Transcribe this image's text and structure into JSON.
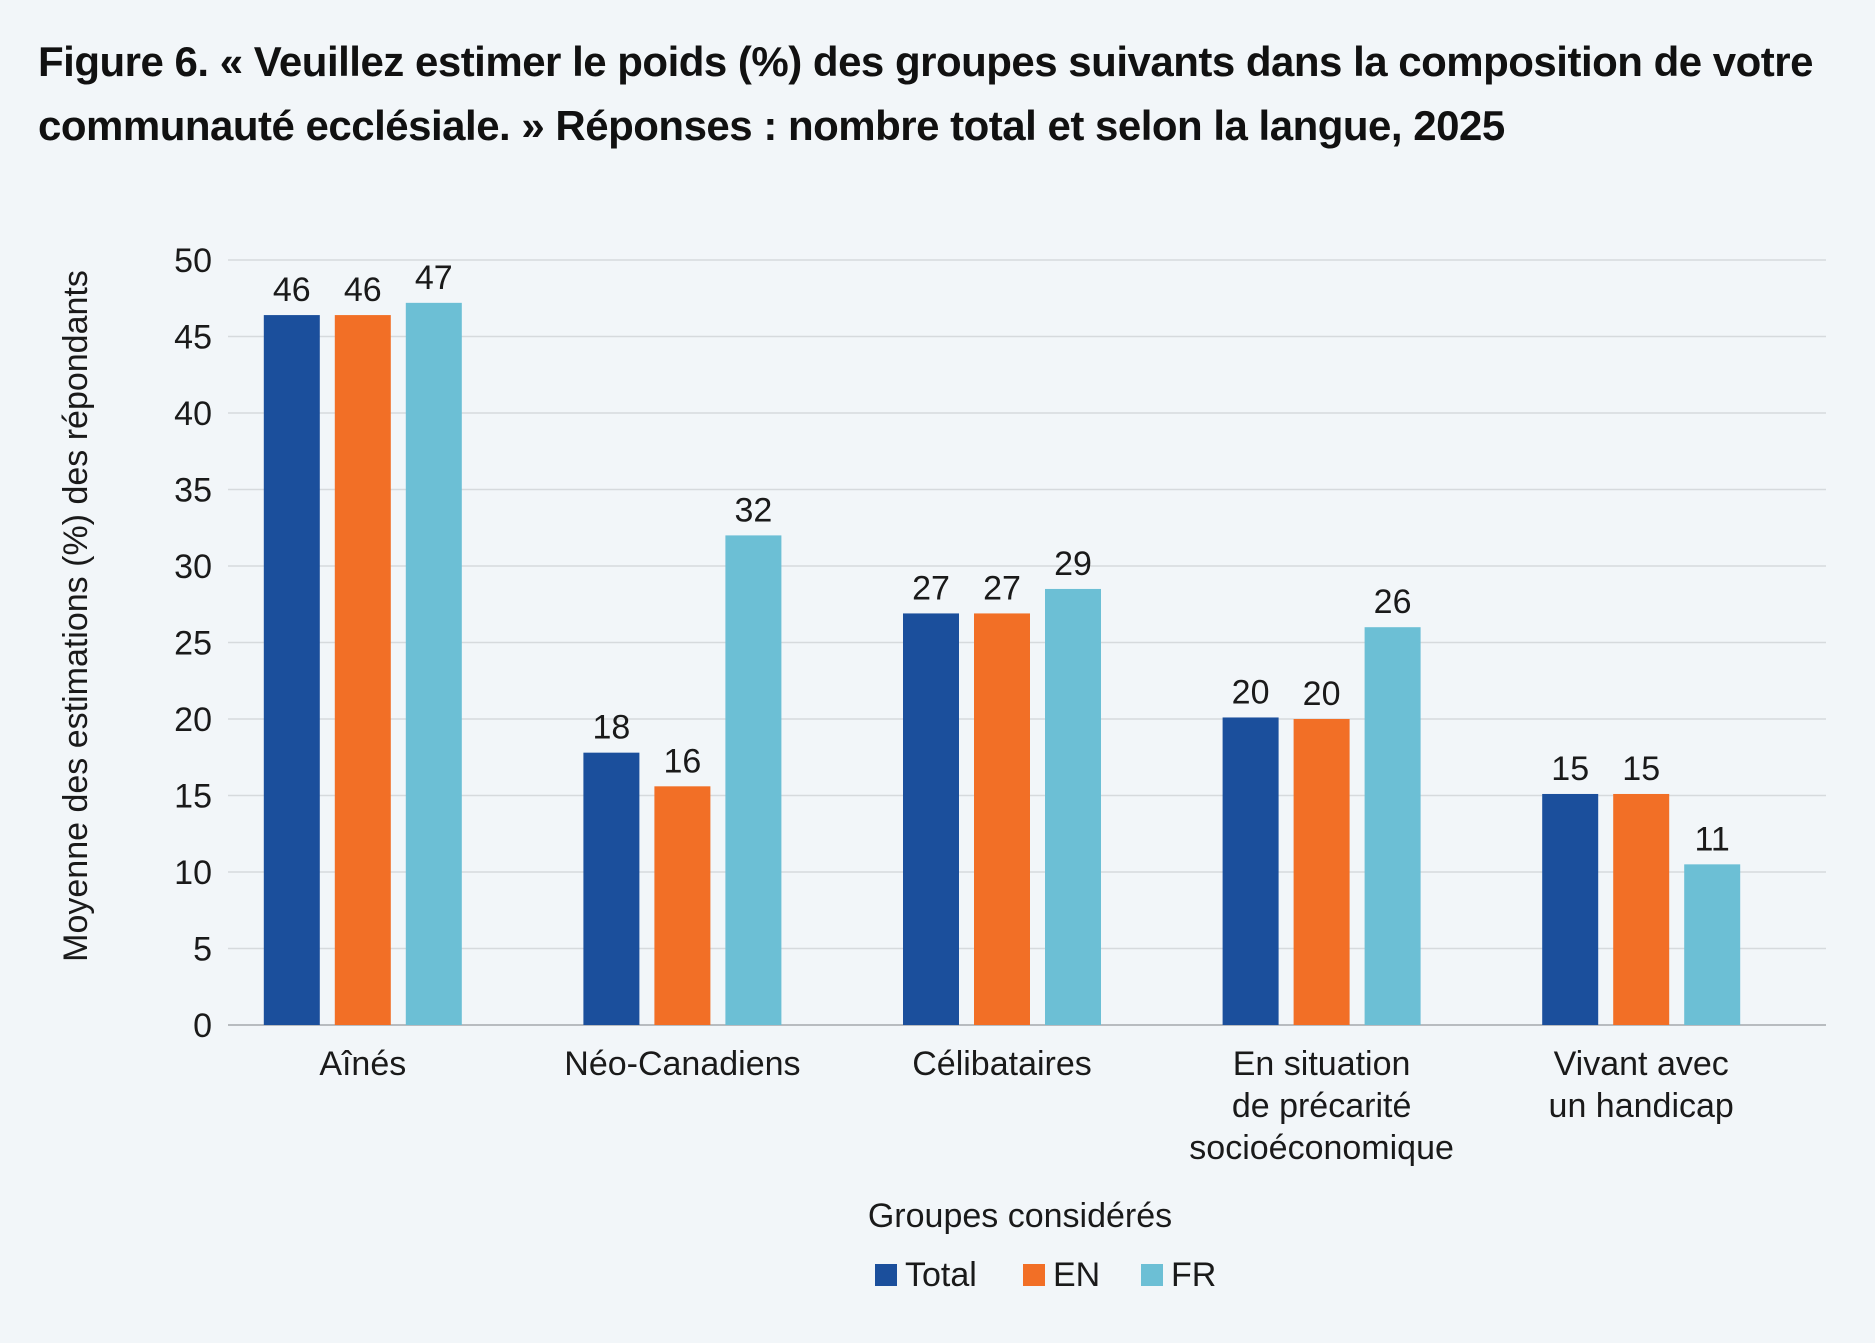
{
  "figure": {
    "title": "Figure 6. « Veuillez estimer le poids (%) des groupes suivants dans la composition de votre communauté ecclésiale. » Réponses : nombre total et selon la langue, 2025"
  },
  "colors": {
    "background": "#f2f6f9",
    "grid": "#d6dadd",
    "axis": "#b8bcc0",
    "Total": "#1b4f9c",
    "EN": "#f26f26",
    "FR": "#6cbfd5"
  },
  "chart_data": {
    "type": "bar",
    "ylabel": "Moyenne des estimations (%) des répondants",
    "xlabel": "Groupes considérés",
    "ylim": [
      0,
      50
    ],
    "yticks": [
      0,
      5,
      10,
      15,
      20,
      25,
      30,
      35,
      40,
      45,
      50
    ],
    "grid": true,
    "legend_position": "bottom-center",
    "categories": [
      [
        "Aînés"
      ],
      [
        "Néo-Canadiens"
      ],
      [
        "Célibataires"
      ],
      [
        "En situation",
        "de précarité",
        "socioéconomique"
      ],
      [
        "Vivant avec",
        "un handicap"
      ]
    ],
    "series": [
      {
        "name": "Total",
        "values": [
          46.4,
          17.8,
          26.9,
          20.1,
          15.1
        ],
        "labels": [
          "46",
          "18",
          "27",
          "20",
          "15"
        ]
      },
      {
        "name": "EN",
        "values": [
          46.4,
          15.6,
          26.9,
          20.0,
          15.1
        ],
        "labels": [
          "46",
          "16",
          "27",
          "20",
          "15"
        ]
      },
      {
        "name": "FR",
        "values": [
          47.2,
          32.0,
          28.5,
          26.0,
          10.5
        ],
        "labels": [
          "47",
          "32",
          "29",
          "26",
          "11"
        ]
      }
    ]
  }
}
